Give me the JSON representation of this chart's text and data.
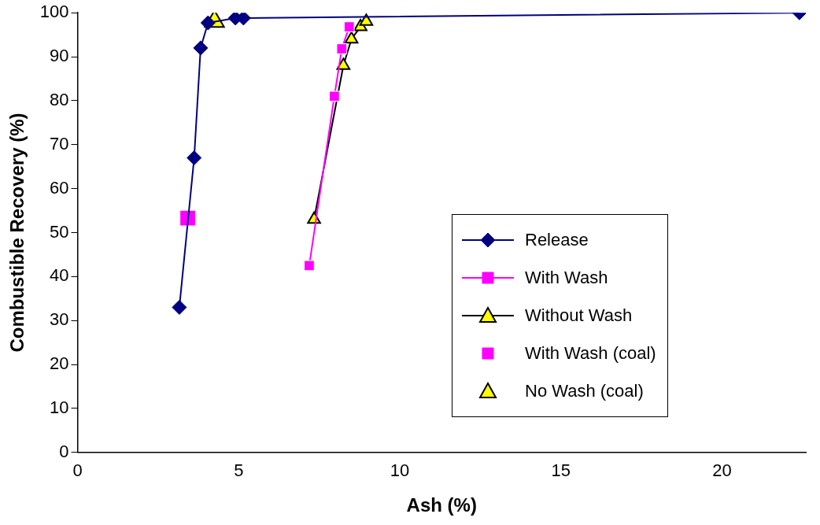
{
  "chart_data": {
    "type": "line",
    "xlabel": "Ash (%)",
    "ylabel": "Combustible Recovery (%)",
    "xlim": [
      0,
      22.6
    ],
    "xticks": [
      0,
      5,
      10,
      15,
      20
    ],
    "ylim": [
      0,
      100
    ],
    "yticks": [
      0,
      10,
      20,
      30,
      40,
      50,
      60,
      70,
      80,
      90,
      100
    ],
    "grid": false,
    "legend": "right",
    "series": [
      {
        "name": "Release",
        "color": "#000080",
        "marker": "diamond",
        "x": [
          3.16,
          3.62,
          3.82,
          4.05,
          4.9,
          5.15,
          22.4
        ],
        "values": [
          33,
          67,
          92,
          97.7,
          98.8,
          98.8,
          100
        ]
      },
      {
        "name": "With Wash",
        "color": "#ff00ff",
        "marker": "square",
        "x": [
          7.19,
          7.97,
          8.2,
          8.43
        ],
        "values": [
          42.5,
          81,
          91.8,
          96.8
        ]
      },
      {
        "name": "Without Wash",
        "color": "#000000",
        "marker": "triangle",
        "x": [
          7.34,
          8.25,
          8.5,
          8.78,
          8.96
        ],
        "values": [
          53,
          88,
          94,
          96.8,
          98
        ]
      },
      {
        "name": "With Wash (coal)",
        "type": "scatter",
        "color": "#ff00ff",
        "marker": "square",
        "x": [
          3.42
        ],
        "values": [
          53.3
        ]
      },
      {
        "name": "No Wash (coal)",
        "type": "scatter",
        "color": "#000000",
        "marker": "triangle",
        "x": [
          4.25
        ],
        "values": [
          98
        ]
      }
    ]
  }
}
